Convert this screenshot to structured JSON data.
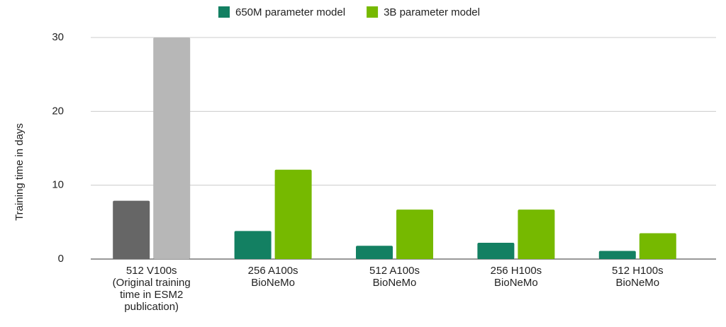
{
  "chart_data": {
    "type": "bar",
    "y_label": "Training time in days",
    "categories": [
      [
        "512 V100s",
        "(Original training",
        "time in ESM2",
        "publication)"
      ],
      [
        "256 A100s",
        "BioNeMo"
      ],
      [
        "512 A100s",
        "BioNeMo"
      ],
      [
        "256 H100s",
        "BioNeMo"
      ],
      [
        "512 H100s",
        "BioNeMo"
      ]
    ],
    "series": [
      {
        "name": "650M parameter model",
        "color": "#138062",
        "point_colors": [
          "#666666",
          "#138062",
          "#138062",
          "#138062",
          "#138062"
        ],
        "values": [
          7.9,
          3.8,
          1.8,
          2.2,
          1.1
        ]
      },
      {
        "name": "3B parameter model",
        "color": "#76b900",
        "point_colors": [
          "#b7b7b7",
          "#76b900",
          "#76b900",
          "#76b900",
          "#76b900"
        ],
        "values": [
          30,
          12.1,
          6.7,
          6.7,
          3.5
        ]
      }
    ],
    "ylim": [
      0,
      30
    ],
    "yticks": [
      0,
      10,
      20,
      30
    ],
    "grid": true,
    "legend": "top"
  }
}
